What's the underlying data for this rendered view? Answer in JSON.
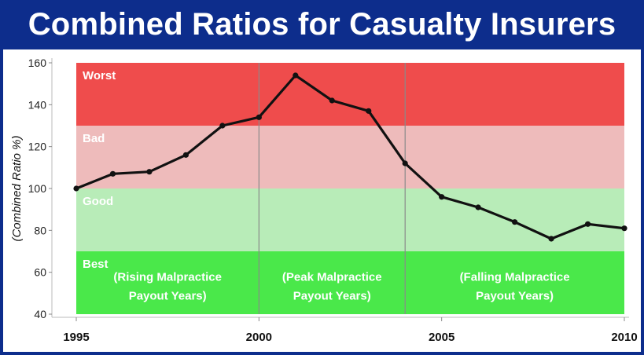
{
  "title": "Combined Ratios for Casualty Insurers",
  "chart_data": {
    "type": "line",
    "title": "Combined Ratios for Casualty Insurers",
    "xlabel": "",
    "ylabel": "(Combined Ratio %)",
    "xlim": [
      1995,
      2010
    ],
    "ylim": [
      40,
      160
    ],
    "x_ticks": [
      "1995",
      "2000",
      "2005",
      "2010"
    ],
    "y_ticks": [
      "40",
      "60",
      "80",
      "100",
      "120",
      "140",
      "160"
    ],
    "grid": false,
    "series": [
      {
        "x": [
          1995,
          1996,
          1997,
          1998,
          1999,
          2000,
          2001,
          2002,
          2003,
          2004,
          2005,
          2006,
          2007,
          2008,
          2009,
          2010
        ],
        "values": [
          100,
          107,
          108,
          116,
          130,
          134,
          154,
          142,
          137,
          112,
          96,
          91,
          84,
          76,
          83,
          81
        ],
        "color": "#111111"
      }
    ],
    "bands": [
      {
        "label": "Worst",
        "from": 130,
        "to": 160,
        "color": "#ef4c4c"
      },
      {
        "label": "Bad",
        "from": 100,
        "to": 130,
        "color": "#eebbbb"
      },
      {
        "label": "Good",
        "from": 70,
        "to": 100,
        "color": "#b8ecb8"
      },
      {
        "label": "Best",
        "from": 40,
        "to": 70,
        "color": "#4ae84a"
      }
    ],
    "eras": [
      {
        "line1": "(Rising Malpractice",
        "line2": "Payout Years)",
        "from": 1995,
        "to": 2000
      },
      {
        "line1": "(Peak Malpractice",
        "line2": "Payout Years)",
        "from": 2000,
        "to": 2004
      },
      {
        "line1": "(Falling Malpractice",
        "line2": "Payout Years)",
        "from": 2004,
        "to": 2010
      }
    ],
    "era_dividers": [
      2000,
      2004
    ]
  }
}
